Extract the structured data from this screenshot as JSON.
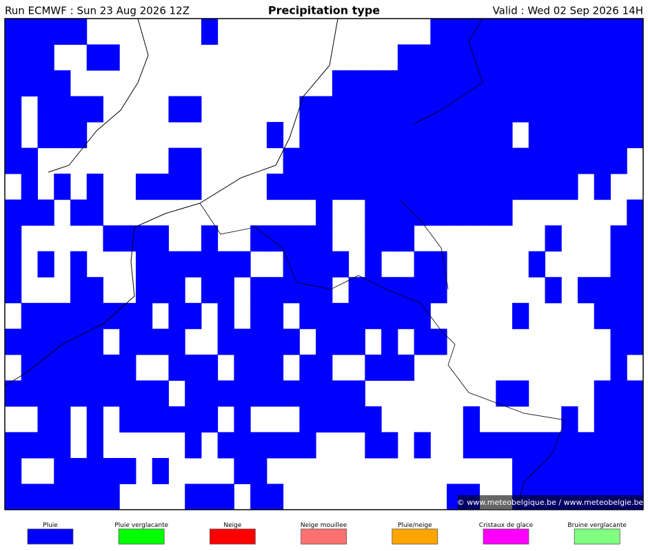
{
  "header": {
    "run": "Run ECMWF : Sun 23 Aug 2026 12Z",
    "title": "Precipitation type",
    "valid": "Valid : Wed 02 Sep 2026 14H"
  },
  "map": {
    "copyright": "© www.meteobelgique.be / www.meteobelgie.be"
  },
  "legend": {
    "items": [
      {
        "label": "Pluie",
        "color": "#0000ff"
      },
      {
        "label": "Pluie verglacante",
        "color": "#00ff00"
      },
      {
        "label": "Neige",
        "color": "#ff0000"
      },
      {
        "label": "Neige mouillee",
        "color": "#ff7070"
      },
      {
        "label": "Pluie/neige",
        "color": "#ffa500"
      },
      {
        "label": "Cristaux de glace",
        "color": "#ff00ff"
      },
      {
        "label": "Bruine verglacante",
        "color": "#80ff80"
      }
    ]
  }
}
